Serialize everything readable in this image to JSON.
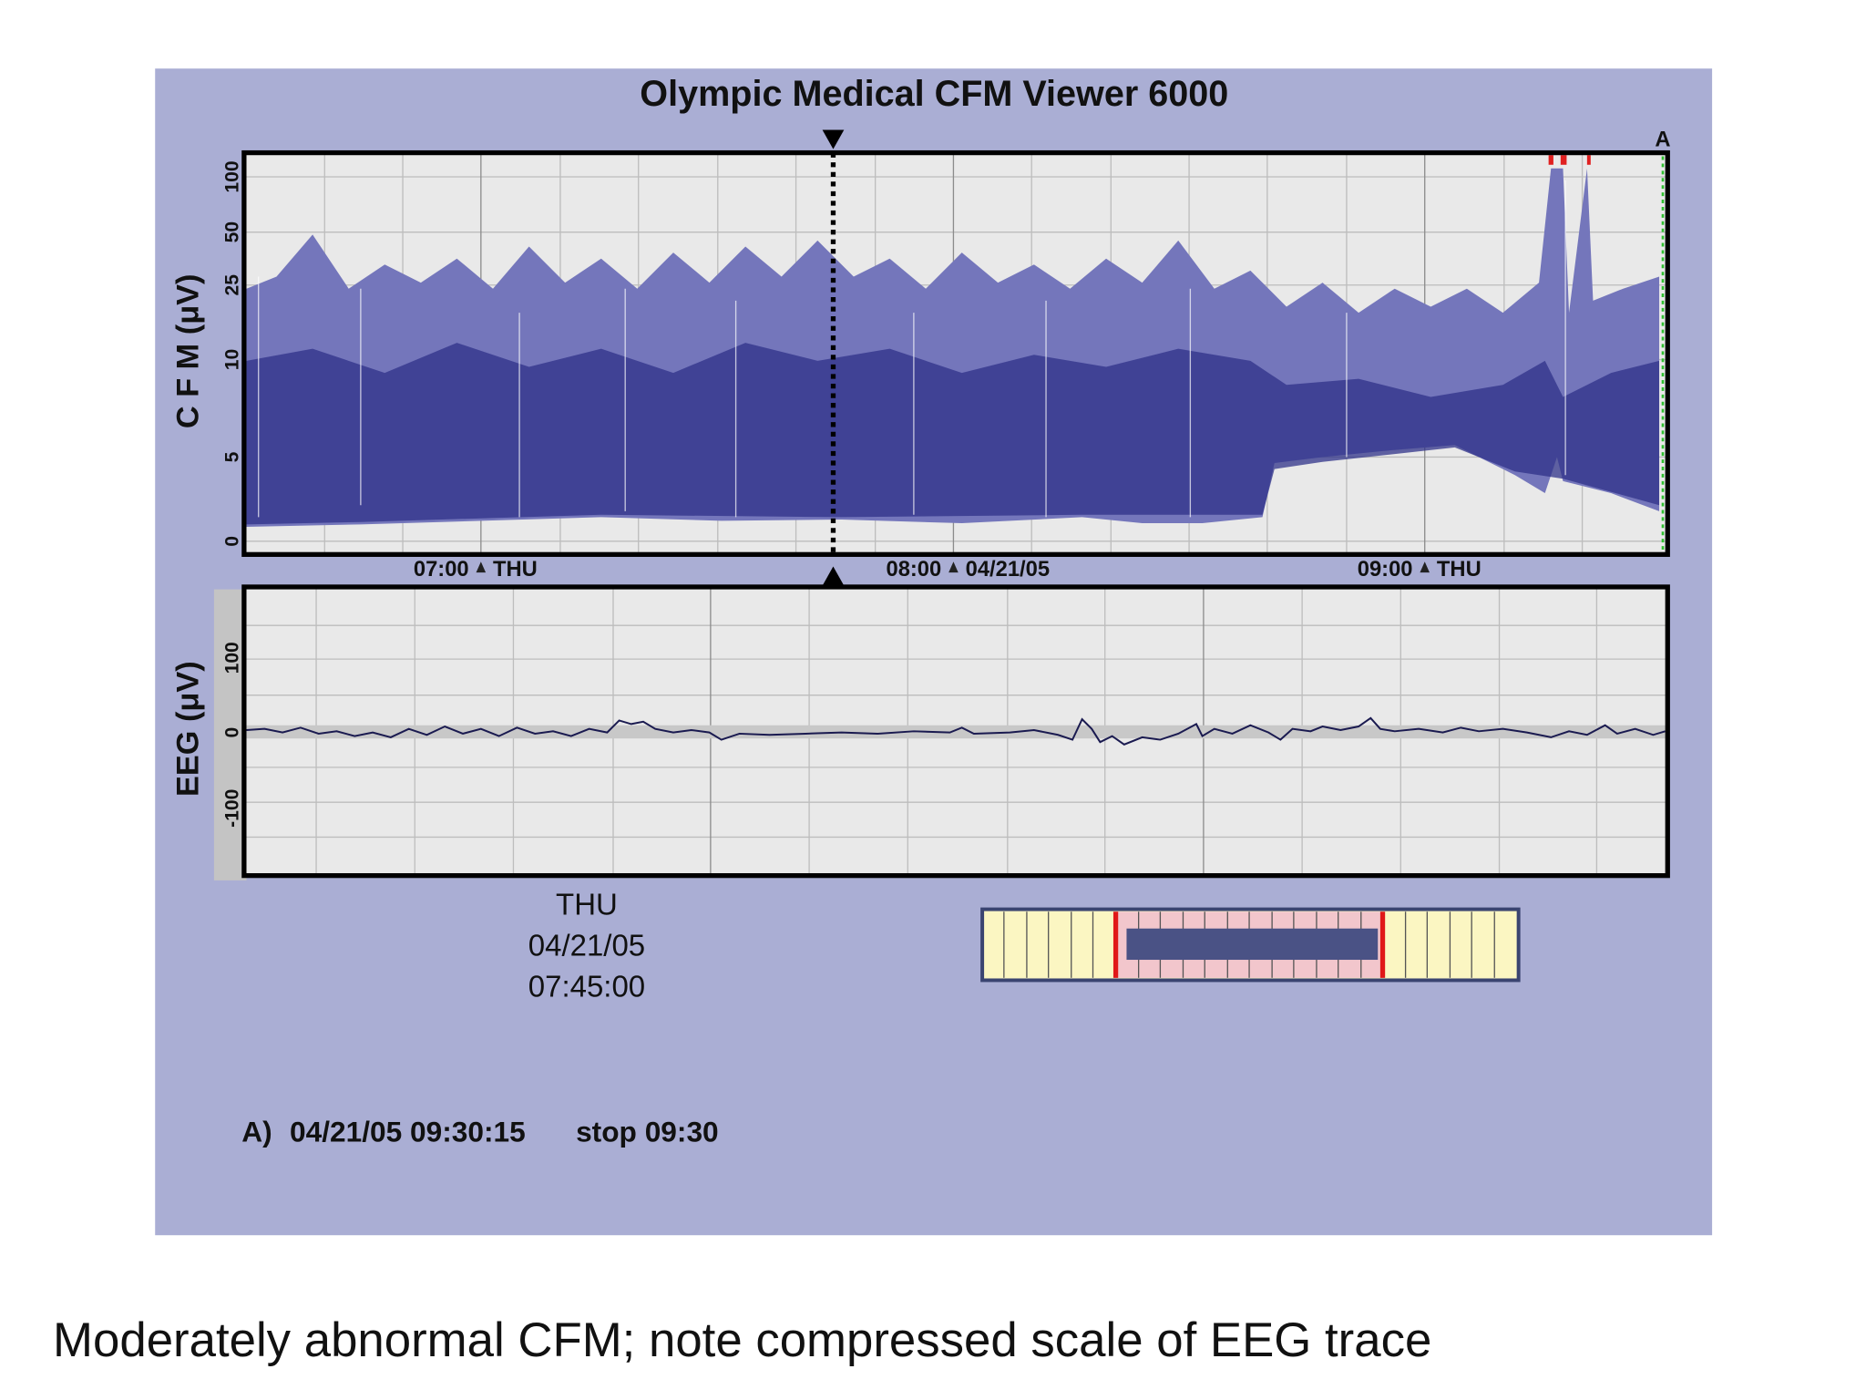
{
  "header": {
    "title": "Olympic Medical CFM Viewer 6000"
  },
  "cfm_panel": {
    "y_label": "C F M (μV)",
    "y_ticks": [
      "100",
      "50",
      "25",
      "10",
      "5",
      "0"
    ],
    "marker": "A",
    "time_axis": [
      {
        "time": "07:00",
        "tag": "THU"
      },
      {
        "time": "08:00",
        "tag": "04/21/05"
      },
      {
        "time": "09:00",
        "tag": "THU"
      }
    ]
  },
  "eeg_panel": {
    "y_label": "EEG (μV)",
    "y_ticks": [
      "100",
      "0",
      "-100"
    ]
  },
  "cursor": {
    "day": "THU",
    "date": "04/21/05",
    "time": "07:45:00"
  },
  "event": {
    "label": "A)",
    "timestamp": "04/21/05 09:30:15",
    "stop": "stop 09:30"
  },
  "caption": "Moderately abnormal CFM; note compressed scale of EEG trace"
}
